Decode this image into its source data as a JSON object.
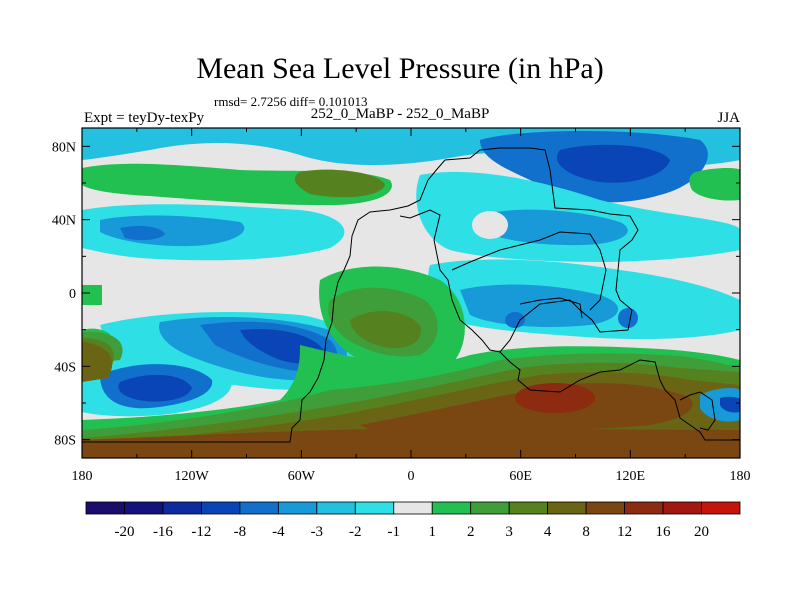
{
  "chart_data": {
    "type": "heatmap",
    "title": "Mean Sea Level Pressure (in hPa)",
    "stats_line": "rmsd= 2.7256 diff= 0.101013",
    "left_label": "Expt = teyDy-texPy",
    "center_label": "252_0_MaBP - 252_0_MaBP",
    "right_label": "JJA",
    "x_ticks": [
      "180",
      "120W",
      "60W",
      "0",
      "60E",
      "120E",
      "180"
    ],
    "x_tick_values": [
      -180,
      -120,
      -60,
      0,
      60,
      120,
      180
    ],
    "y_ticks": [
      "80N",
      "40N",
      "0",
      "40S",
      "80S"
    ],
    "y_tick_values": [
      80,
      40,
      0,
      -40,
      -80
    ],
    "xlim": [
      -180,
      180
    ],
    "ylim": [
      -90,
      90
    ],
    "colorbar": {
      "labels": [
        "-20",
        "-16",
        "-12",
        "-8",
        "-4",
        "-3",
        "-2",
        "-1",
        "1",
        "2",
        "3",
        "4",
        "8",
        "12",
        "16",
        "20"
      ],
      "colors": [
        "#1a0d6b",
        "#13137e",
        "#0d2aa0",
        "#0a45b8",
        "#1070cc",
        "#189ad8",
        "#24c0e0",
        "#2ee0e6",
        "#e6e6e6",
        "#22c050",
        "#3f9e3a",
        "#55821e",
        "#6a6415",
        "#7a4612",
        "#8c2b0f",
        "#a21810",
        "#c4140c"
      ]
    },
    "field_features": [
      {
        "region": "Arctic / northern band",
        "value": -3,
        "color": "#24c0e0"
      },
      {
        "region": "NE Asia high latitudes",
        "value": -4,
        "color": "#1070cc"
      },
      {
        "region": "Northern midlatitude patches",
        "value": 2,
        "color": "#22c050"
      },
      {
        "region": "Central N Pacific",
        "value": -3,
        "color": "#24c0e0"
      },
      {
        "region": "Tropical East Atlantic / West Africa",
        "value": 3,
        "color": "#3f9e3a"
      },
      {
        "region": "Southern subtropical South Pacific low",
        "value": -8,
        "color": "#0a45b8"
      },
      {
        "region": "South Atlantic low",
        "value": -8,
        "color": "#0a45b8"
      },
      {
        "region": "Southern Indian Ocean / Australia",
        "value": 12,
        "color": "#7a4612"
      },
      {
        "region": "Antarctic margin",
        "value": 8,
        "color": "#6a6415"
      },
      {
        "region": "Eastern Asia",
        "value": -3,
        "color": "#24c0e0"
      }
    ]
  }
}
